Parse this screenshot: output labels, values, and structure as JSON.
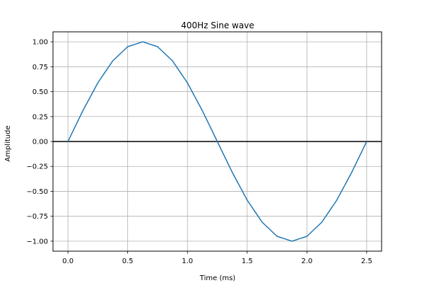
{
  "chart_data": {
    "type": "line",
    "title": "400Hz Sine wave",
    "xlabel": "Time (ms)",
    "ylabel": "Amplitude",
    "xlim": [
      -0.125,
      2.625
    ],
    "ylim": [
      -1.1,
      1.1
    ],
    "xticks": [
      0.0,
      0.5,
      1.0,
      1.5,
      2.0,
      2.5
    ],
    "xtick_labels": [
      "0.0",
      "0.5",
      "1.0",
      "1.5",
      "2.0",
      "2.5"
    ],
    "yticks": [
      1.0,
      0.75,
      0.5,
      0.25,
      0.0,
      -0.25,
      -0.5,
      -0.75,
      -1.0
    ],
    "ytick_labels": [
      "1.00",
      "0.75",
      "0.50",
      "0.25",
      "0.00",
      "−0.25",
      "−0.50",
      "−0.75",
      "−1.00"
    ],
    "grid": true,
    "zero_line": true,
    "series": [
      {
        "color": "#1f77b4",
        "x": [
          0.0,
          0.125,
          0.25,
          0.375,
          0.5,
          0.625,
          0.75,
          0.875,
          1.0,
          1.125,
          1.25,
          1.375,
          1.5,
          1.625,
          1.75,
          1.875,
          2.0,
          2.125,
          2.25,
          2.375,
          2.5
        ],
        "y": [
          0.0,
          0.309,
          0.588,
          0.809,
          0.951,
          1.0,
          0.951,
          0.809,
          0.588,
          0.309,
          0.0,
          -0.309,
          -0.588,
          -0.809,
          -0.951,
          -1.0,
          -0.951,
          -0.809,
          -0.588,
          -0.309,
          0.0
        ]
      }
    ]
  }
}
